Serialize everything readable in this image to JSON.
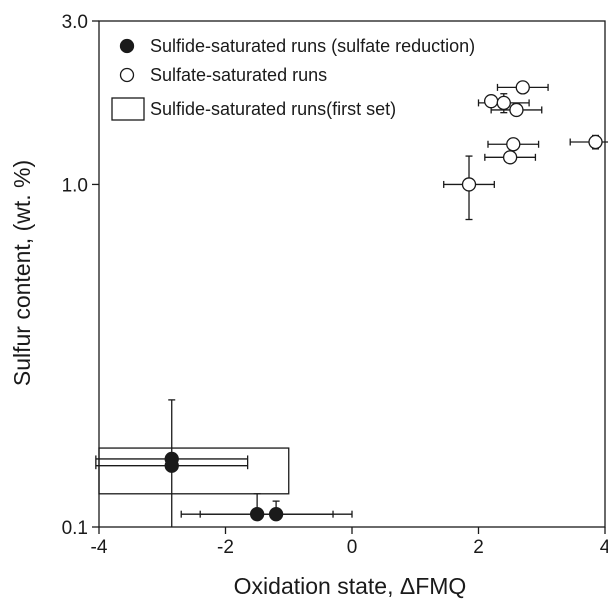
{
  "chart_data": {
    "type": "scatter",
    "xlabel": "Oxidation state, ΔFMQ",
    "ylabel": "Sulfur content, (wt. %)",
    "x_scale": "linear",
    "y_scale": "log",
    "xlim": [
      -4,
      4
    ],
    "ylim": [
      0.1,
      3.0
    ],
    "x_ticks": [
      -4,
      -2,
      0,
      2,
      4
    ],
    "x_tick_labels": [
      "-4",
      "-2",
      "0",
      "2",
      "4"
    ],
    "y_ticks": [
      0.1,
      1.0,
      3.0
    ],
    "y_tick_labels": [
      "0.1",
      "1.0",
      "3.0"
    ],
    "grid": false,
    "legend_position": "top-left",
    "legend": [
      {
        "label": "Sulfide-saturated runs (sulfate reduction)",
        "marker": "filled-circle"
      },
      {
        "label": "Sulfate-saturated runs",
        "marker": "open-circle"
      },
      {
        "label": "Sulfide-saturated runs(first set)",
        "marker": "rectangle"
      }
    ],
    "series": [
      {
        "marker": "filled-circle",
        "points": [
          {
            "x": -2.85,
            "y": 0.158,
            "xerr": [
              1.2,
              1.2
            ],
            "yerr": [
              0.08,
              0.077
            ]
          },
          {
            "x": -2.85,
            "y": 0.151,
            "xerr": [
              1.2,
              1.2
            ],
            "yerr": [
              0.0,
              0.0
            ]
          },
          {
            "x": -1.5,
            "y": 0.109,
            "xerr": [
              1.2,
              1.2
            ],
            "yerr": [
              0.0,
              0.016
            ]
          },
          {
            "x": -1.2,
            "y": 0.109,
            "xerr": [
              1.2,
              1.2
            ],
            "yerr": [
              0.0,
              0.01
            ]
          }
        ]
      },
      {
        "marker": "open-circle",
        "points": [
          {
            "x": 2.7,
            "y": 1.92,
            "xerr": [
              0.4,
              0.4
            ],
            "yerr": [
              0.0,
              0.0
            ]
          },
          {
            "x": 2.2,
            "y": 1.75,
            "xerr": [
              0.0,
              0.0
            ],
            "yerr": [
              0.0,
              0.0
            ]
          },
          {
            "x": 2.4,
            "y": 1.73,
            "xerr": [
              0.4,
              0.4
            ],
            "yerr": [
              0.11,
              0.11
            ]
          },
          {
            "x": 2.6,
            "y": 1.65,
            "xerr": [
              0.4,
              0.4
            ],
            "yerr": [
              0.0,
              0.0
            ]
          },
          {
            "x": 2.55,
            "y": 1.31,
            "xerr": [
              0.4,
              0.4
            ],
            "yerr": [
              0.0,
              0.0
            ]
          },
          {
            "x": 3.85,
            "y": 1.33,
            "xerr": [
              0.4,
              0.4
            ],
            "yerr": [
              0.06,
              0.06
            ]
          },
          {
            "x": 2.5,
            "y": 1.2,
            "xerr": [
              0.4,
              0.4
            ],
            "yerr": [
              0.0,
              0.0
            ]
          },
          {
            "x": 1.85,
            "y": 1.0,
            "xerr": [
              0.4,
              0.4
            ],
            "yerr": [
              0.21,
              0.21
            ]
          }
        ]
      },
      {
        "marker": "rectangle",
        "rectangles": [
          {
            "x0": -4,
            "x1": -1,
            "y0": 0.125,
            "y1": 0.17
          }
        ]
      }
    ]
  }
}
